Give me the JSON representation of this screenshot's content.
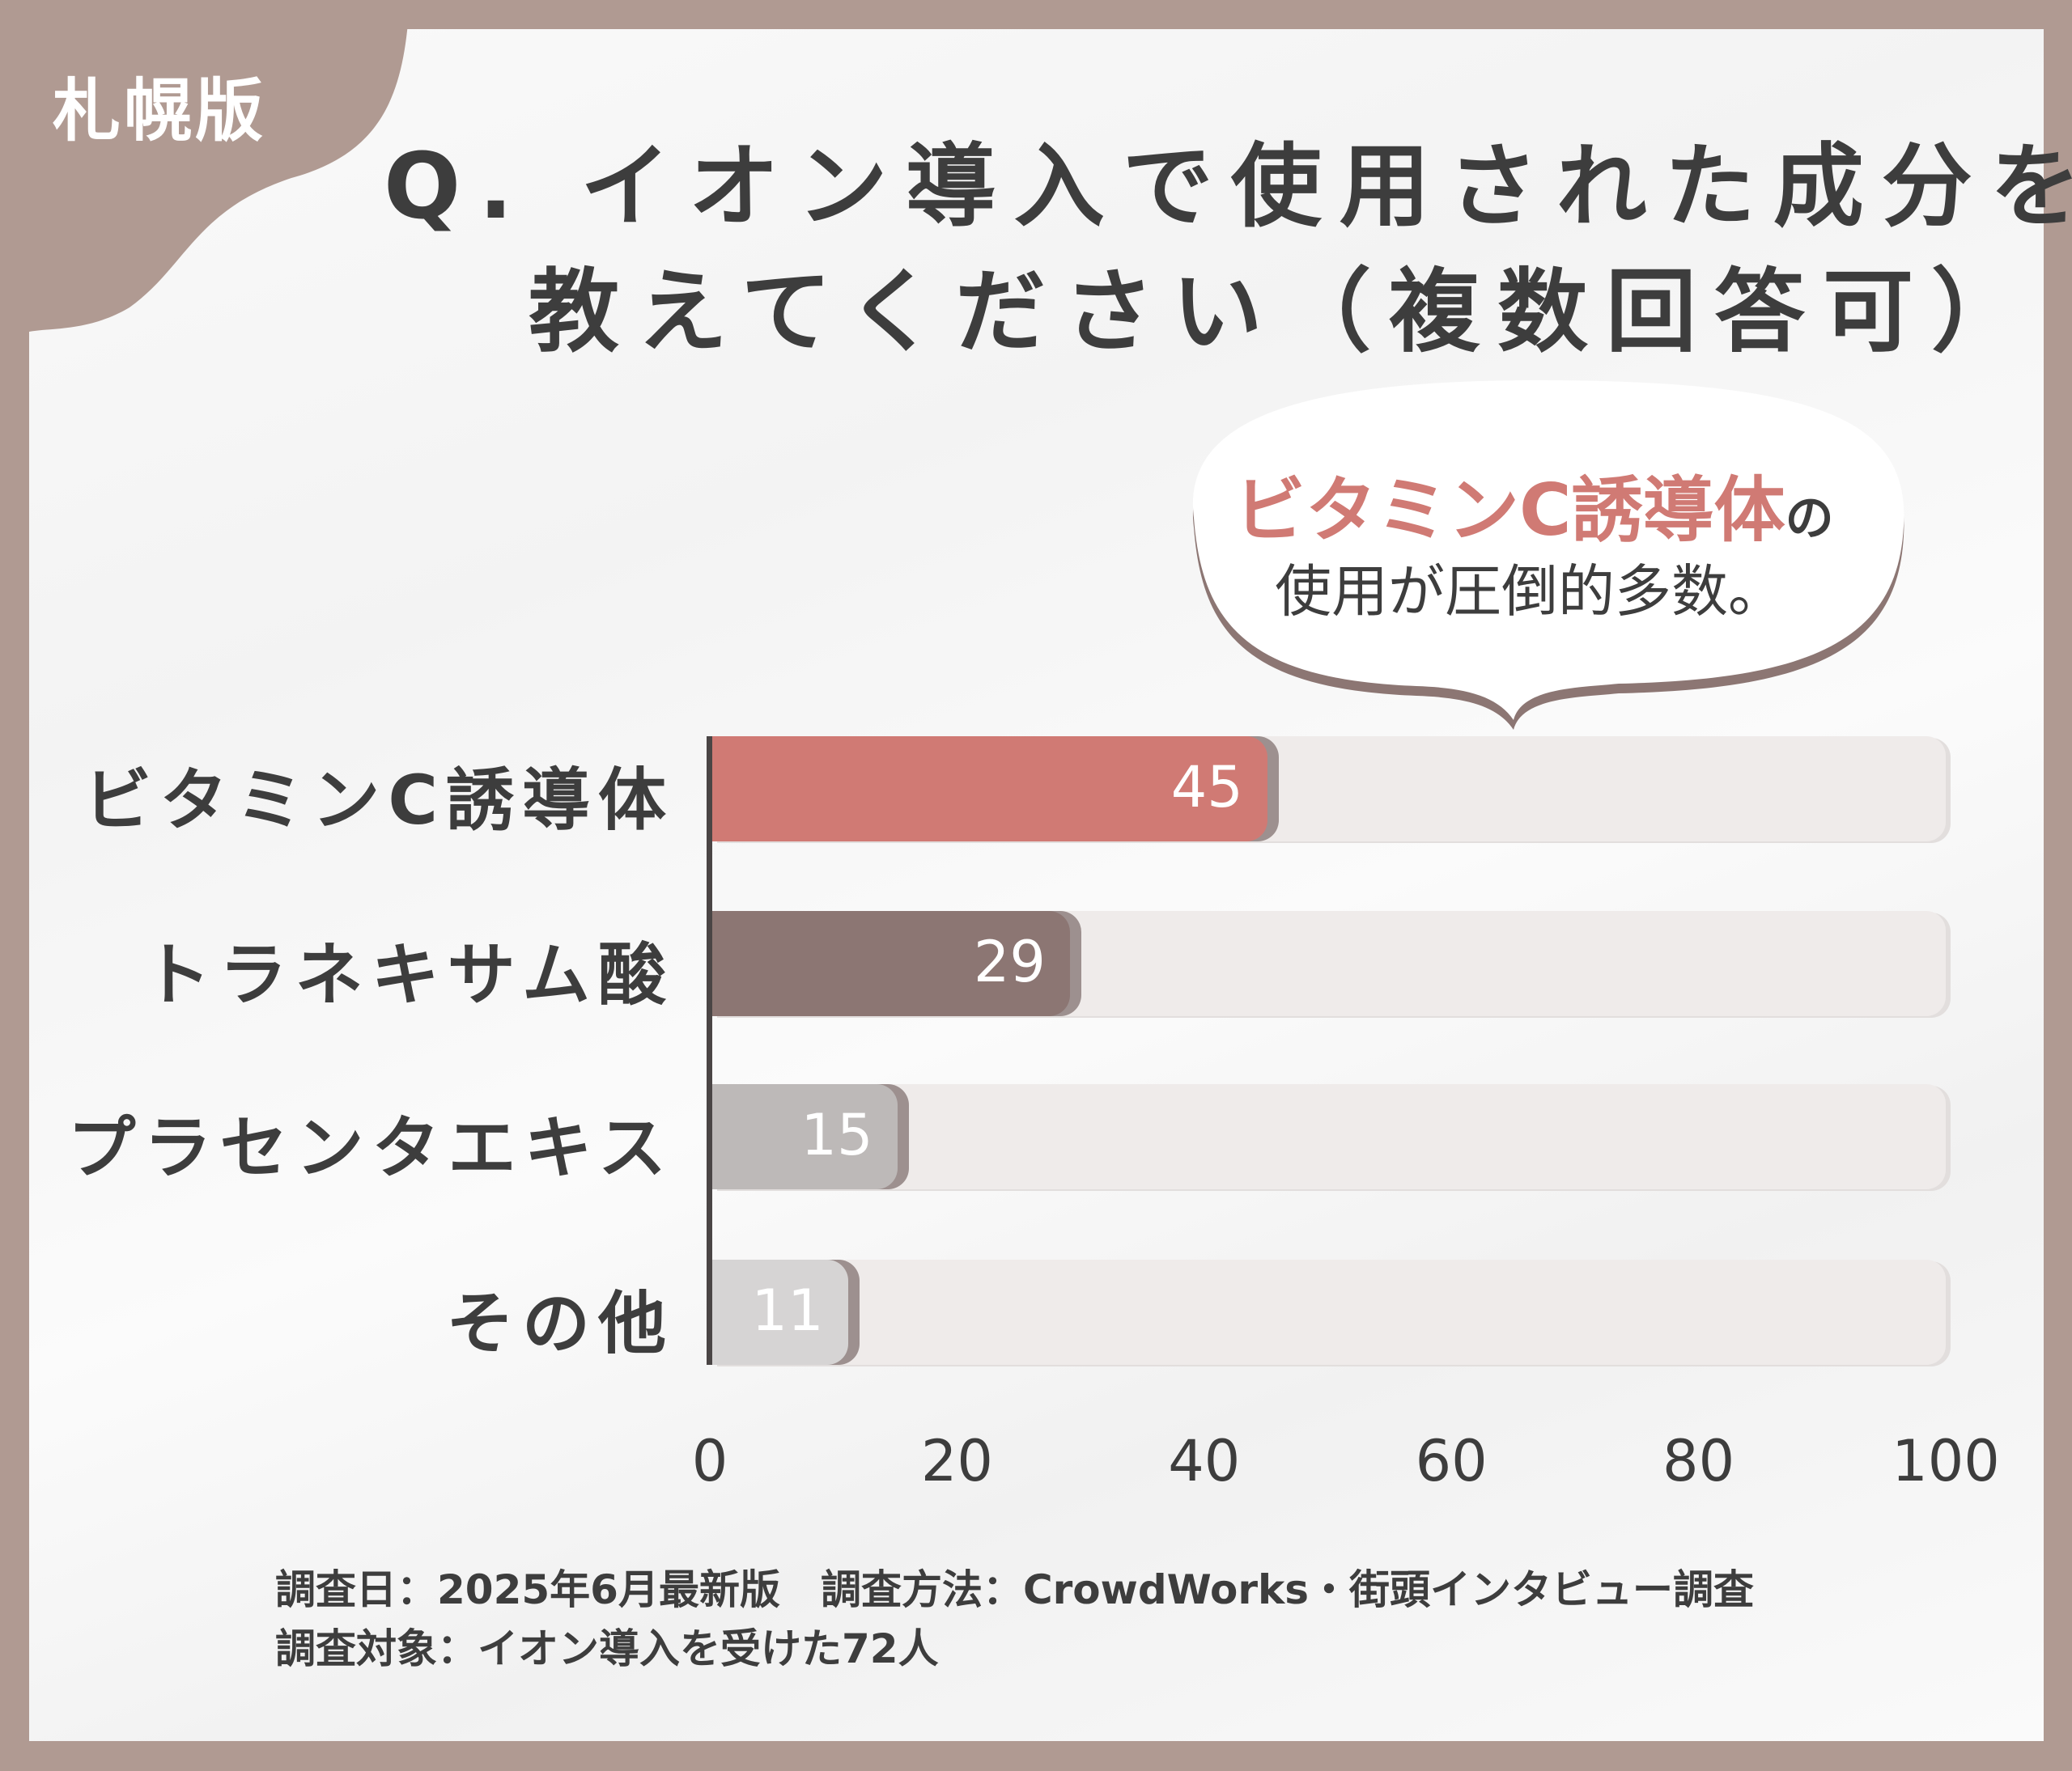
{
  "edition_label": "札幌版",
  "title": {
    "line1": "Q. イオン導入で使用された成分を",
    "line2": "教えてください（複数回答可）"
  },
  "callout": {
    "highlight": "ビタミンC誘導体",
    "particle": "の",
    "line2": "使用が圧倒的多数。"
  },
  "chart_data": {
    "type": "bar",
    "orientation": "horizontal",
    "categories": [
      "ビタミンC誘導体",
      "トラネキサム酸",
      "プラセンタエキス",
      "その他"
    ],
    "values": [
      45,
      29,
      15,
      11
    ],
    "xlim": [
      0,
      100
    ],
    "xticks": [
      "0",
      "20",
      "40",
      "60",
      "80",
      "100"
    ],
    "grid": false,
    "colors": [
      "#d07a74",
      "#8c7673",
      "#bdb9b8",
      "#d6d4d4"
    ],
    "track_color": "#efebea"
  },
  "footer": {
    "line1": "調査日：2025年6月最新版　調査方法：CrowdWorks・街頭インタビュー調査",
    "line2": "調査対象：イオン導入を受けた72人"
  },
  "colors": {
    "border": "#b09a92",
    "accent": "#d07a74",
    "text": "#3d3d3d"
  }
}
